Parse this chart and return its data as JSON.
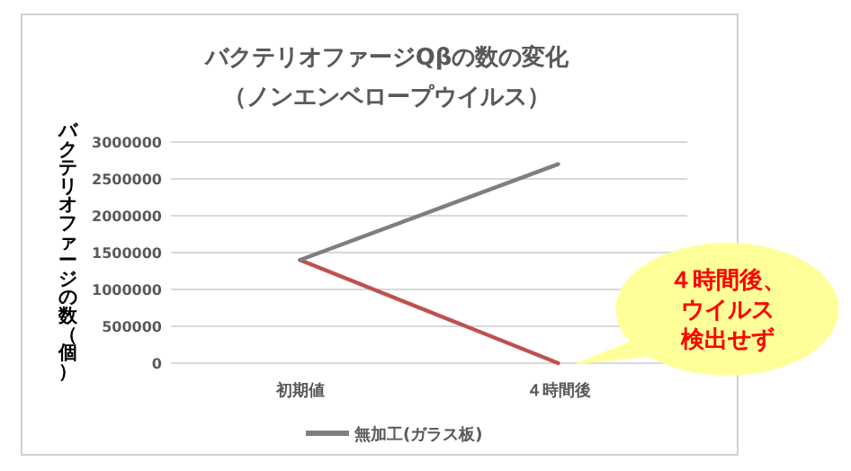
{
  "chart_data": {
    "type": "line",
    "title": "バクテリオファージQβの数の変化",
    "subtitle": "（ノンエンベロープウイルス）",
    "ylabel": "バクテリオファージの数（個）",
    "categories": [
      "初期値",
      "４時間後"
    ],
    "series": [
      {
        "color": "#c0504d",
        "values": [
          1400000,
          0
        ]
      },
      {
        "name": "無加工(ガラス板)",
        "color": "#7f7f7f",
        "values": [
          1400000,
          2700000
        ]
      }
    ],
    "ylim": [
      0,
      3000000
    ],
    "yticks": [
      0,
      500000,
      1000000,
      1500000,
      2000000,
      2500000,
      3000000
    ],
    "grid": "y",
    "legend": "bottom",
    "annotations": [
      {
        "text": "４時間後、ウイルス検出せず",
        "x": "４時間後",
        "y": 0
      }
    ]
  }
}
